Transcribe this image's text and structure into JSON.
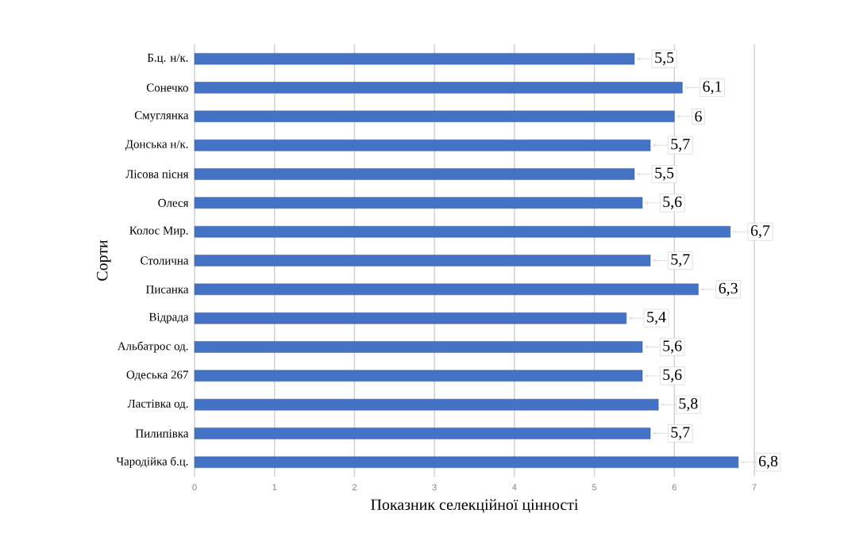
{
  "chart_data": {
    "type": "bar",
    "orientation": "horizontal",
    "xlabel": "Показник селекційної цінності",
    "ylabel": "Сорти",
    "categories": [
      "Б.ц. н/к.",
      "Сонечко",
      "Смуглянка",
      "Донська н/к.",
      "Лісова пісня",
      "Олеся",
      "Колос Мир.",
      "Столична",
      "Писанка",
      "Відрада",
      "Альбатрос од.",
      "Одеська 267",
      "Ластівка од.",
      "Пилипівка",
      "Чародійка б.ц."
    ],
    "values": [
      5.5,
      6.1,
      6,
      5.7,
      5.5,
      5.6,
      6.7,
      5.7,
      6.3,
      5.4,
      5.6,
      5.6,
      5.8,
      5.7,
      6.8
    ],
    "value_labels": [
      "5,5",
      "6,1",
      "6",
      "5,7",
      "5,5",
      "5,6",
      "6,7",
      "5,7",
      "6,3",
      "5,4",
      "5,6",
      "5,6",
      "5,8",
      "5,7",
      "6,8"
    ],
    "color": "#4472c4",
    "xlim": [
      0,
      7
    ],
    "xticks": [
      0,
      1,
      2,
      3,
      4,
      5,
      6,
      7
    ],
    "grid": "x"
  }
}
